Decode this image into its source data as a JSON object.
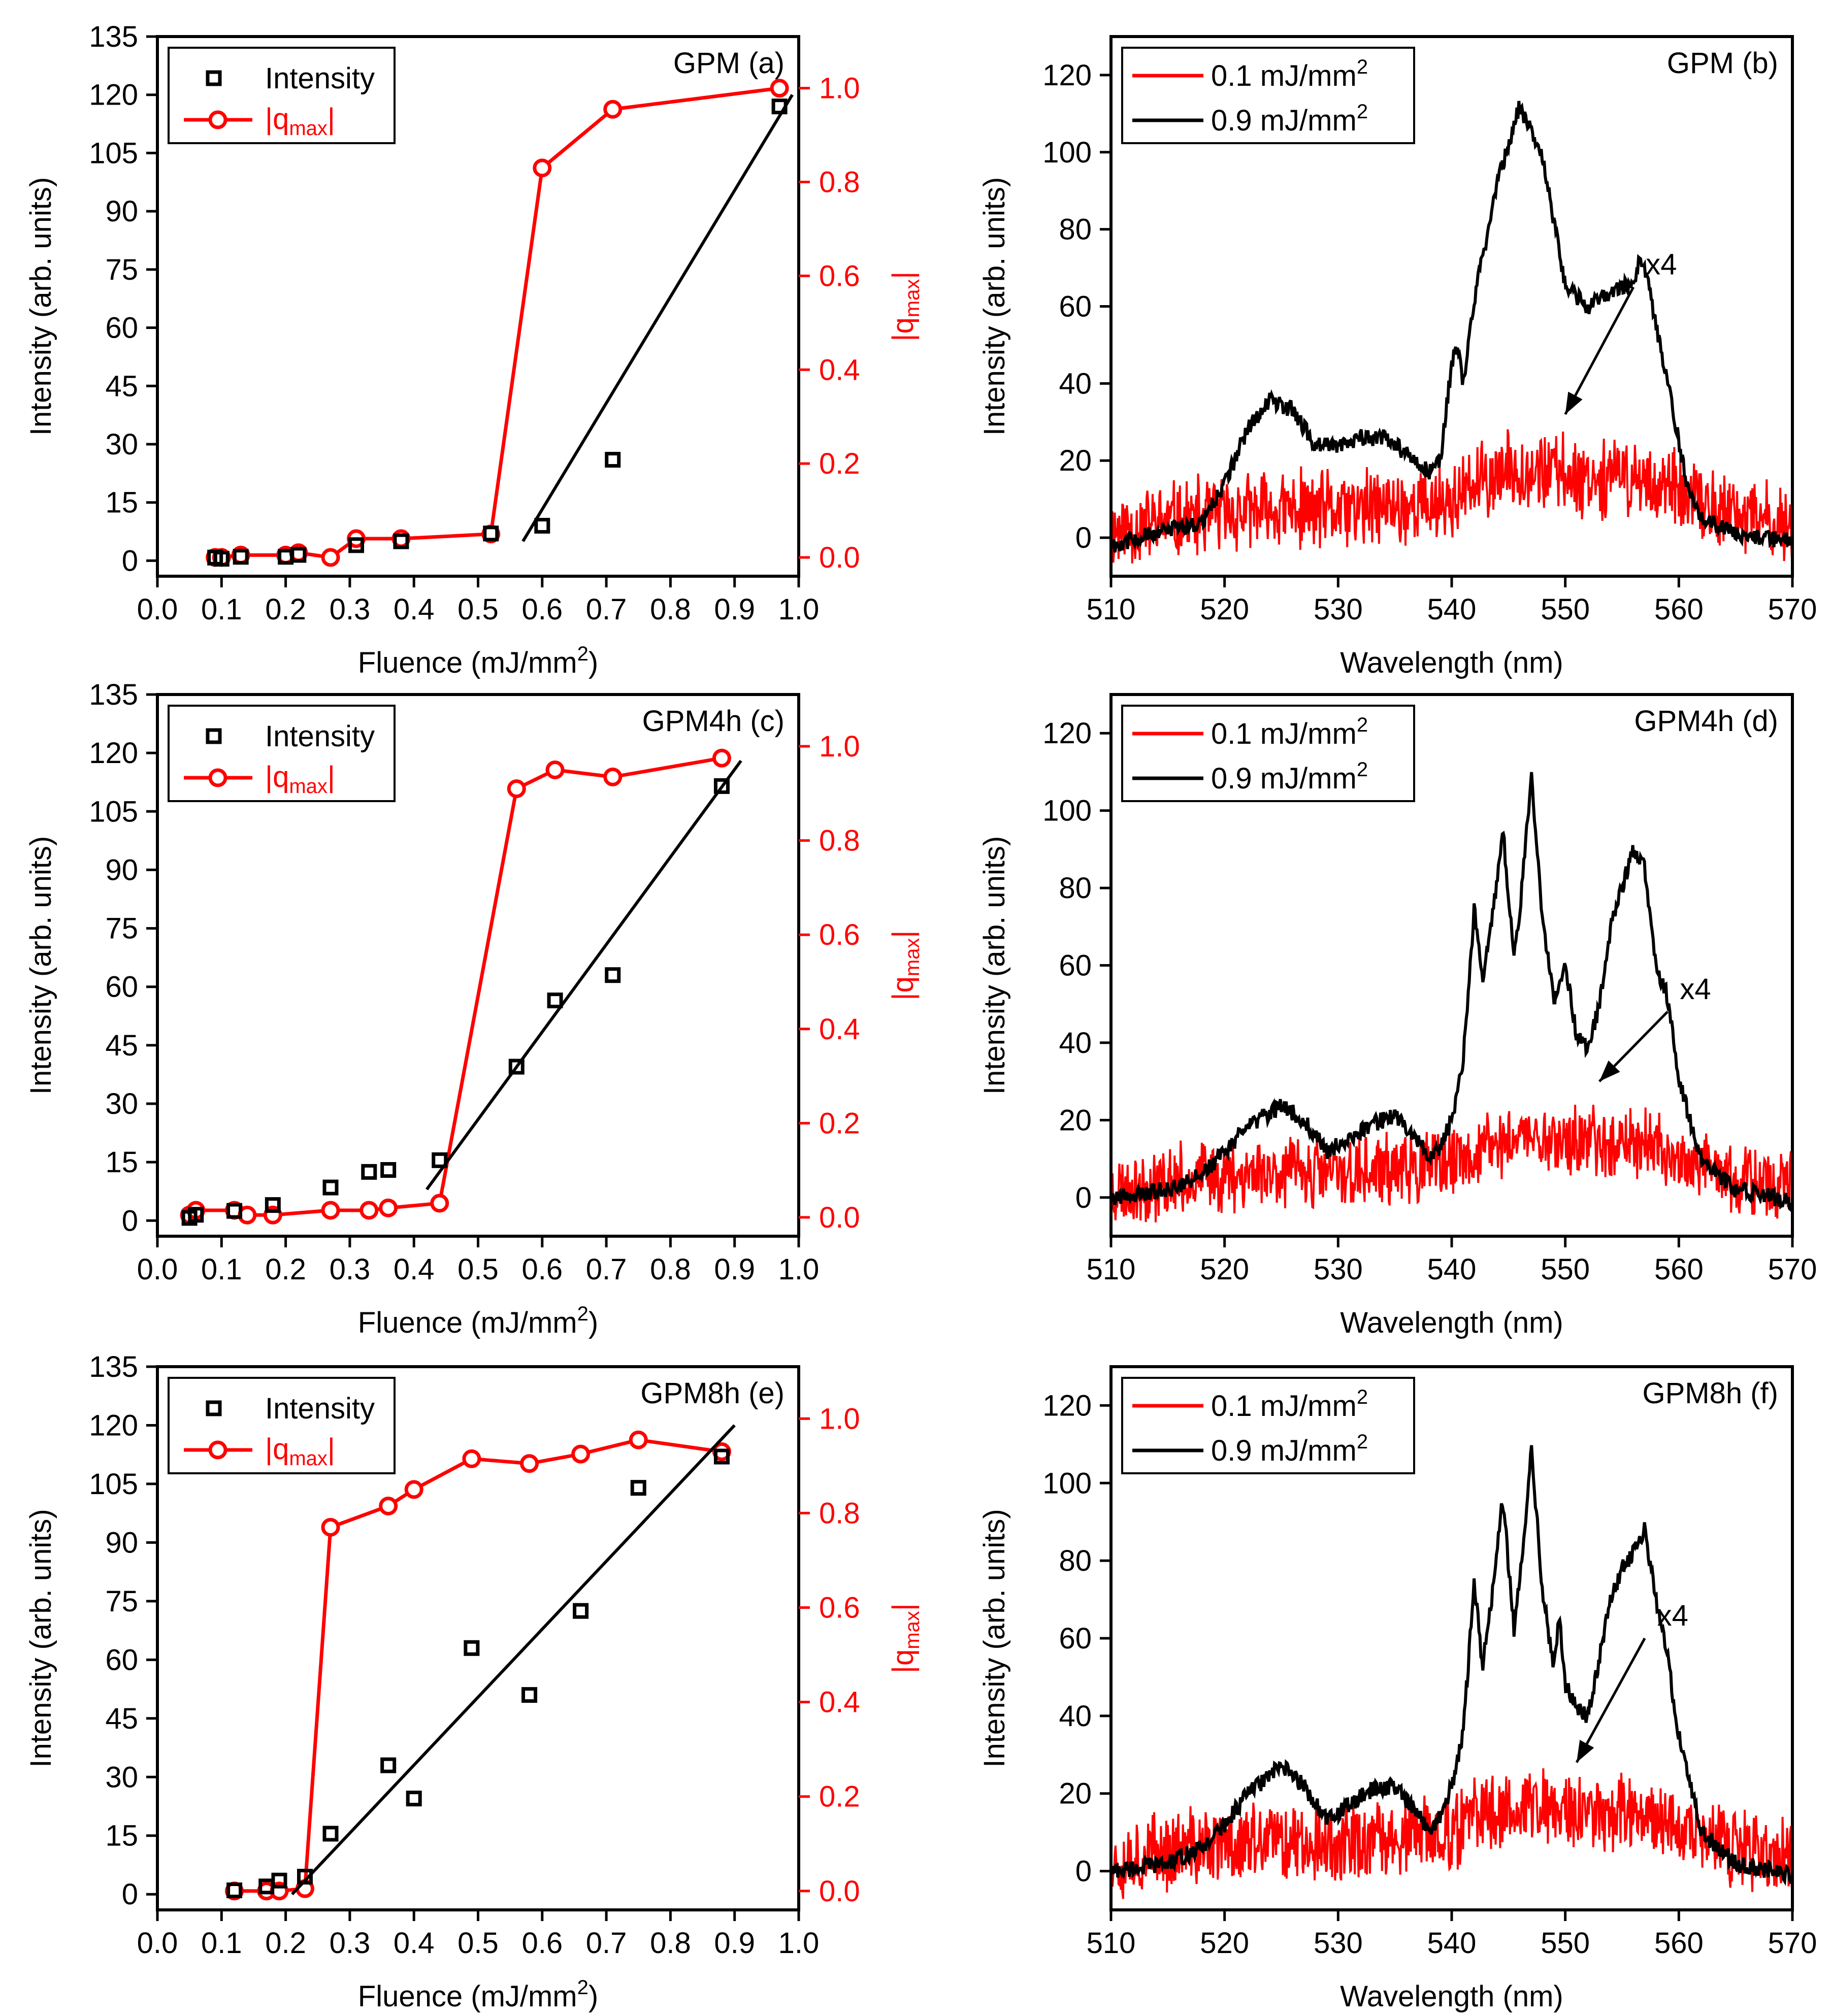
{
  "colors": {
    "black": "#000000",
    "red": "#ff0000",
    "background": "#ffffff"
  },
  "chart_data": [
    {
      "id": "a",
      "type": "scatter",
      "title": "GPM (a)",
      "xlabel": "Fluence (mJ/mm",
      "xlabel_sup": "2",
      "xlabel_end": ")",
      "ylabel": "Intensity (arb. units)",
      "y2label": "|q",
      "y2label_sub": "max",
      "y2label_end": "|",
      "xlim": [
        0,
        1.0
      ],
      "ylim": [
        -4,
        135
      ],
      "y2lim": [
        -0.04,
        1.11
      ],
      "xticks": [
        0.0,
        0.1,
        0.2,
        0.3,
        0.4,
        0.5,
        0.6,
        0.7,
        0.8,
        0.9,
        1.0
      ],
      "yticks": [
        0,
        15,
        30,
        45,
        60,
        75,
        90,
        105,
        120,
        135
      ],
      "y2ticks": [
        0.0,
        0.2,
        0.4,
        0.6,
        0.8,
        1.0
      ],
      "legend": {
        "intensity": "Intensity",
        "q_main": "|q",
        "q_sub": "max",
        "q_end": "|"
      },
      "intensity": {
        "x": [
          0.09,
          0.1,
          0.13,
          0.2,
          0.22,
          0.31,
          0.38,
          0.52,
          0.6,
          0.71,
          0.97
        ],
        "y": [
          0.8,
          0.5,
          1.0,
          1.0,
          1.5,
          4.0,
          5.0,
          7.0,
          9.0,
          26.0,
          117.0
        ]
      },
      "fit": {
        "x": [
          0.57,
          0.99
        ],
        "y": [
          5.0,
          120.0
        ]
      },
      "q": {
        "x": [
          0.09,
          0.1,
          0.13,
          0.2,
          0.22,
          0.27,
          0.31,
          0.38,
          0.52,
          0.6,
          0.71,
          0.97
        ],
        "y": [
          0.0,
          0.0,
          0.005,
          0.005,
          0.01,
          0.0,
          0.04,
          0.04,
          0.05,
          0.83,
          0.955,
          1.0
        ]
      }
    },
    {
      "id": "b",
      "type": "line",
      "title": "GPM (b)",
      "xlabel": "Wavelength (nm)",
      "ylabel": "Intensity (arb. units)",
      "xlim": [
        510,
        570
      ],
      "ylim": [
        -10,
        130
      ],
      "xticks": [
        510,
        520,
        530,
        540,
        550,
        560,
        570
      ],
      "yticks": [
        0,
        20,
        40,
        60,
        80,
        100,
        120
      ],
      "legend": [
        {
          "text": "0.1 mJ/mm",
          "sup": "2",
          "color": "#ff0000"
        },
        {
          "text": "0.9 mJ/mm",
          "sup": "2",
          "color": "#000000"
        }
      ],
      "annotation": "x4",
      "annotation_arrow": [
        [
          556,
          65
        ],
        [
          550,
          32
        ]
      ],
      "series_high": {
        "name": "0.9 mJ/mm2",
        "x": [
          510,
          515,
          518,
          520,
          522,
          524,
          526,
          528,
          530,
          532,
          534,
          536,
          538,
          539,
          540,
          540.5,
          541,
          542,
          544,
          546,
          548,
          549,
          550,
          552,
          554,
          556,
          556.5,
          557,
          558,
          559,
          560,
          561,
          562,
          565,
          570
        ],
        "y": [
          -2,
          2,
          4,
          14,
          28,
          36,
          33,
          24,
          24,
          26,
          26,
          22,
          17,
          20,
          45,
          50,
          40,
          62,
          92,
          112,
          98,
          82,
          65,
          60,
          64,
          66,
          72,
          70,
          55,
          40,
          25,
          10,
          5,
          1,
          -1
        ]
      },
      "series_low": {
        "name": "0.1 mJ/mm2",
        "x": [
          510,
          515,
          520,
          525,
          530,
          535,
          540,
          543,
          546,
          549,
          552,
          555,
          558,
          562,
          566,
          570
        ],
        "y": [
          2,
          4,
          6,
          7,
          7,
          8,
          9,
          15,
          18,
          17,
          16,
          16,
          14,
          8,
          5,
          3
        ],
        "noise": 10,
        "seed": 11
      }
    },
    {
      "id": "c",
      "type": "scatter",
      "title": "GPM4h (c)",
      "xlabel": "Fluence (mJ/mm",
      "xlabel_sup": "2",
      "xlabel_end": ")",
      "ylabel": "Intensity (arb. units)",
      "y2label": "|q",
      "y2label_sub": "max",
      "y2label_end": "|",
      "xlim": [
        0,
        1.0
      ],
      "ylim": [
        -4,
        135
      ],
      "y2lim": [
        -0.04,
        1.11
      ],
      "xticks": [
        0.0,
        0.1,
        0.2,
        0.3,
        0.4,
        0.5,
        0.6,
        0.7,
        0.8,
        0.9,
        1.0
      ],
      "yticks": [
        0,
        15,
        30,
        45,
        60,
        75,
        90,
        105,
        120,
        135
      ],
      "y2ticks": [
        0.0,
        0.2,
        0.4,
        0.6,
        0.8,
        1.0
      ],
      "legend": {
        "intensity": "Intensity",
        "q_main": "|q",
        "q_sub": "max",
        "q_end": "|"
      },
      "intensity": {
        "x": [
          0.05,
          0.06,
          0.12,
          0.18,
          0.27,
          0.33,
          0.36,
          0.44,
          0.56,
          0.62,
          0.71,
          0.88
        ],
        "y": [
          0.7,
          1.5,
          2.5,
          4.0,
          8.5,
          12.5,
          13.0,
          15.5,
          39.5,
          56.5,
          63.0,
          111.5
        ]
      },
      "fit": {
        "x": [
          0.42,
          0.91
        ],
        "y": [
          8.0,
          118.0
        ]
      },
      "q": {
        "x": [
          0.05,
          0.06,
          0.12,
          0.14,
          0.18,
          0.27,
          0.33,
          0.36,
          0.44,
          0.56,
          0.62,
          0.71,
          0.88
        ],
        "y": [
          0.005,
          0.015,
          0.015,
          0.005,
          0.005,
          0.015,
          0.015,
          0.02,
          0.03,
          0.91,
          0.95,
          0.935,
          0.975
        ]
      }
    },
    {
      "id": "d",
      "type": "line",
      "title": "GPM4h (d)",
      "xlabel": "Wavelength (nm)",
      "ylabel": "Intensity (arb. units)",
      "xlim": [
        510,
        570
      ],
      "ylim": [
        -10,
        130
      ],
      "xticks": [
        510,
        520,
        530,
        540,
        550,
        560,
        570
      ],
      "yticks": [
        0,
        20,
        40,
        60,
        80,
        100,
        120
      ],
      "legend": [
        {
          "text": "0.1 mJ/mm",
          "sup": "2",
          "color": "#ff0000"
        },
        {
          "text": "0.9 mJ/mm",
          "sup": "2",
          "color": "#000000"
        }
      ],
      "annotation": "x4",
      "annotation_arrow": [
        [
          559,
          48
        ],
        [
          553,
          30
        ]
      ],
      "series_high": {
        "name": "0.9 mJ/mm2",
        "x": [
          510,
          515,
          518,
          520,
          522,
          525,
          527,
          529,
          531,
          533,
          535,
          536,
          538,
          539,
          540,
          541,
          542,
          542.7,
          543.5,
          544.5,
          545.5,
          546.2,
          547,
          548,
          549,
          550,
          551,
          552,
          553,
          554,
          555,
          556,
          557,
          558,
          559,
          560,
          562,
          565,
          570
        ],
        "y": [
          0,
          2,
          6,
          12,
          18,
          24,
          20,
          12,
          15,
          19,
          21,
          18,
          11,
          13,
          20,
          35,
          75,
          55,
          70,
          95,
          62,
          80,
          110,
          72,
          50,
          60,
          42,
          38,
          50,
          70,
          80,
          90,
          85,
          60,
          52,
          30,
          10,
          2,
          -1
        ]
      },
      "series_low": {
        "name": "0.1 mJ/mm2",
        "x": [
          510,
          515,
          520,
          525,
          530,
          535,
          540,
          543,
          546,
          549,
          552,
          555,
          558,
          562,
          566,
          570
        ],
        "y": [
          2,
          4,
          6,
          7,
          6,
          7,
          8,
          13,
          16,
          15,
          14,
          15,
          13,
          7,
          4,
          3
        ],
        "noise": 9,
        "seed": 23
      }
    },
    {
      "id": "e",
      "type": "scatter",
      "title": "GPM8h (e)",
      "xlabel": "Fluence (mJ/mm",
      "xlabel_sup": "2",
      "xlabel_end": ")",
      "ylabel": "Intensity (arb. units)",
      "y2label": "|q",
      "y2label_sub": "max",
      "y2label_end": "|",
      "xlim": [
        0,
        1.0
      ],
      "ylim": [
        -4,
        135
      ],
      "y2lim": [
        -0.04,
        1.11
      ],
      "xticks": [
        0.0,
        0.1,
        0.2,
        0.3,
        0.4,
        0.5,
        0.6,
        0.7,
        0.8,
        0.9,
        1.0
      ],
      "yticks": [
        0,
        15,
        30,
        45,
        60,
        75,
        90,
        105,
        120,
        135
      ],
      "y2ticks": [
        0.0,
        0.2,
        0.4,
        0.6,
        0.8,
        1.0
      ],
      "legend": {
        "intensity": "Intensity",
        "q_main": "|q",
        "q_sub": "max",
        "q_end": "|"
      },
      "intensity": {
        "x": [
          0.12,
          0.17,
          0.19,
          0.23,
          0.27,
          0.36,
          0.4,
          0.49,
          0.58,
          0.66,
          0.75,
          0.88
        ],
        "y": [
          1.0,
          2.0,
          3.5,
          4.5,
          15.5,
          33.0,
          24.5,
          63.0,
          51.0,
          72.5,
          104.0,
          112.0
        ]
      },
      "fit": {
        "x": [
          0.21,
          0.9
        ],
        "y": [
          0.0,
          120.0
        ]
      },
      "q": {
        "x": [
          0.12,
          0.17,
          0.19,
          0.23,
          0.27,
          0.36,
          0.4,
          0.49,
          0.58,
          0.66,
          0.75,
          0.88
        ],
        "y": [
          0.0,
          0.0,
          0.0,
          0.005,
          0.77,
          0.815,
          0.85,
          0.915,
          0.905,
          0.925,
          0.955,
          0.93
        ]
      }
    },
    {
      "id": "f",
      "type": "line",
      "title": "GPM8h (f)",
      "xlabel": "Wavelength (nm)",
      "ylabel": "Intensity (arb. units)",
      "xlim": [
        510,
        570
      ],
      "ylim": [
        -10,
        130
      ],
      "xticks": [
        510,
        520,
        530,
        540,
        550,
        560,
        570
      ],
      "yticks": [
        0,
        20,
        40,
        60,
        80,
        100,
        120
      ],
      "legend": [
        {
          "text": "0.1 mJ/mm",
          "sup": "2",
          "color": "#ff0000"
        },
        {
          "text": "0.9 mJ/mm",
          "sup": "2",
          "color": "#000000"
        }
      ],
      "annotation": "x4",
      "annotation_arrow": [
        [
          557,
          60
        ],
        [
          551,
          28
        ]
      ],
      "series_high": {
        "name": "0.9 mJ/mm2",
        "x": [
          510,
          515,
          518,
          520,
          522,
          525,
          527,
          529,
          531,
          533,
          535,
          536,
          538,
          539,
          540,
          541,
          542,
          542.7,
          543.5,
          544.5,
          545.5,
          546.2,
          547,
          548,
          549,
          549.5,
          550,
          551,
          552,
          553,
          554,
          555,
          556,
          557,
          558,
          559,
          560,
          562,
          565,
          570
        ],
        "y": [
          0,
          2,
          6,
          12,
          20,
          27,
          22,
          13,
          17,
          21,
          22,
          18,
          11,
          14,
          22,
          35,
          75,
          52,
          70,
          96,
          62,
          80,
          110,
          72,
          52,
          66,
          48,
          42,
          40,
          55,
          70,
          78,
          82,
          88,
          70,
          55,
          35,
          10,
          2,
          -1
        ]
      },
      "series_low": {
        "name": "0.1 mJ/mm2",
        "x": [
          510,
          515,
          520,
          525,
          530,
          535,
          540,
          543,
          546,
          549,
          552,
          555,
          558,
          562,
          566,
          570
        ],
        "y": [
          3,
          5,
          7,
          8,
          7,
          8,
          10,
          15,
          17,
          16,
          15,
          16,
          14,
          8,
          5,
          3
        ],
        "noise": 10,
        "seed": 37
      }
    }
  ]
}
